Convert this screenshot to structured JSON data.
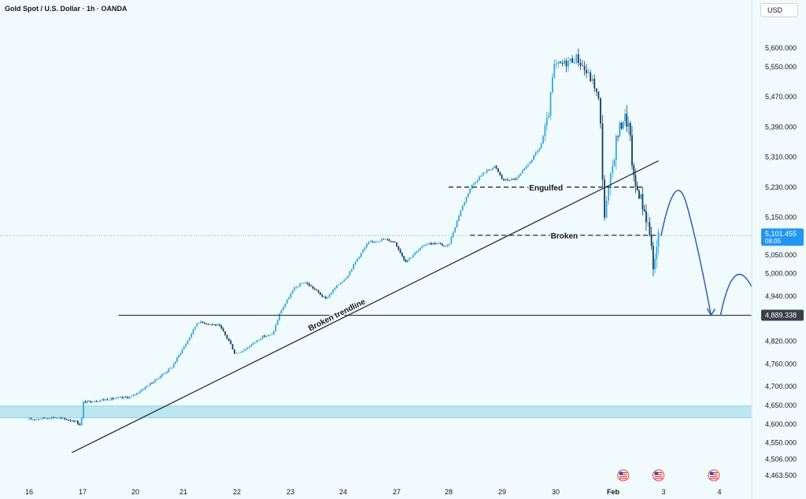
{
  "header": {
    "title": "Gold Spot / U.S. Dollar · 1h · OANDA",
    "currency": "USD"
  },
  "colors": {
    "background": "#f1fafc",
    "bull_candle": "#33a9d6",
    "bear_candle": "#123c69",
    "support_zone": "#b3e3ef",
    "annotation_arrow": "#2f5fb3",
    "last_price_badge": "#2196f3",
    "level_badge": "#3a3f4a"
  },
  "chart_data": {
    "type": "candlestick",
    "symbol": "Gold Spot / U.S. Dollar",
    "timeframe": "1h",
    "source": "OANDA",
    "ylim": [
      4440,
      5640
    ],
    "y_ticks": [
      "5,600.000",
      "5,550.000",
      "5,470.000",
      "5,390.000",
      "5,310.000",
      "5,230.000",
      "5,150.000",
      "5,050.000",
      "5,000.000",
      "4,940.000",
      "4,820.000",
      "4,760.000",
      "4,700.000",
      "4,650.000",
      "4,600.000",
      "4,550.000",
      "4,506.000",
      "4,463.500"
    ],
    "y_tick_values": [
      5600,
      5550,
      5470,
      5390,
      5310,
      5230,
      5150,
      5050,
      5000,
      4940,
      4820,
      4760,
      4700,
      4650,
      4600,
      4550,
      4506,
      4463.5
    ],
    "x_ticks": [
      {
        "label": "16",
        "day": 0
      },
      {
        "label": "17",
        "day": 1
      },
      {
        "label": "20",
        "day": 2
      },
      {
        "label": "21",
        "day": 3
      },
      {
        "label": "22",
        "day": 4
      },
      {
        "label": "23",
        "day": 5
      },
      {
        "label": "24",
        "day": 6
      },
      {
        "label": "27",
        "day": 7
      },
      {
        "label": "28",
        "day": 8
      },
      {
        "label": "29",
        "day": 9
      },
      {
        "label": "30",
        "day": 10
      },
      {
        "label": "Feb",
        "day": 11
      },
      {
        "label": "3",
        "day": 12
      },
      {
        "label": "4",
        "day": 13
      }
    ],
    "price_path": [
      [
        0.0,
        4612
      ],
      [
        0.5,
        4618
      ],
      [
        0.9,
        4608
      ],
      [
        1.0,
        4596
      ],
      [
        1.05,
        4658
      ],
      [
        1.5,
        4666
      ],
      [
        1.95,
        4672
      ],
      [
        2.4,
        4712
      ],
      [
        2.8,
        4752
      ],
      [
        3.1,
        4818
      ],
      [
        3.3,
        4872
      ],
      [
        3.7,
        4862
      ],
      [
        3.9,
        4818
      ],
      [
        4.0,
        4786
      ],
      [
        4.2,
        4800
      ],
      [
        4.5,
        4832
      ],
      [
        4.7,
        4838
      ],
      [
        4.85,
        4900
      ],
      [
        5.1,
        4960
      ],
      [
        5.3,
        4978
      ],
      [
        5.5,
        4958
      ],
      [
        5.7,
        4932
      ],
      [
        5.9,
        4965
      ],
      [
        6.1,
        4992
      ],
      [
        6.3,
        5040
      ],
      [
        6.5,
        5082
      ],
      [
        6.8,
        5092
      ],
      [
        7.0,
        5084
      ],
      [
        7.2,
        5032
      ],
      [
        7.4,
        5056
      ],
      [
        7.6,
        5080
      ],
      [
        7.85,
        5080
      ],
      [
        8.0,
        5070
      ],
      [
        8.05,
        5082
      ],
      [
        8.25,
        5165
      ],
      [
        8.45,
        5232
      ],
      [
        8.7,
        5270
      ],
      [
        8.9,
        5285
      ],
      [
        9.05,
        5248
      ],
      [
        9.3,
        5252
      ],
      [
        9.5,
        5286
      ],
      [
        9.75,
        5338
      ],
      [
        9.9,
        5420
      ],
      [
        10.0,
        5550
      ],
      [
        10.2,
        5560
      ],
      [
        10.4,
        5575
      ],
      [
        10.55,
        5540
      ],
      [
        10.7,
        5505
      ],
      [
        10.8,
        5450
      ],
      [
        10.88,
        5150
      ],
      [
        10.95,
        5210
      ],
      [
        11.1,
        5360
      ],
      [
        11.25,
        5420
      ],
      [
        11.35,
        5390
      ],
      [
        11.45,
        5240
      ],
      [
        11.55,
        5215
      ],
      [
        11.65,
        5170
      ],
      [
        11.75,
        5120
      ],
      [
        11.85,
        5005
      ],
      [
        11.93,
        5102
      ]
    ],
    "last_price": {
      "value": 5101.455,
      "label": "5,101.455",
      "countdown": "08:05"
    },
    "horizontal_levels": [
      {
        "value": 4889.338,
        "label": "4,889.338",
        "style": "solid"
      },
      {
        "value": 5230,
        "style": "dashed",
        "text": "Engulfed",
        "from_day": 8.0,
        "to_day": 11.6
      },
      {
        "value": 5102,
        "style": "dashed",
        "text": "Broken",
        "from_day": 8.4,
        "to_day": 11.9
      }
    ],
    "trendline": {
      "from": [
        0.8,
        4524
      ],
      "to": [
        11.9,
        5300
      ],
      "text": "Broken trendline"
    },
    "support_zone": {
      "from": 4617,
      "to": 4648
    },
    "projection_path": [
      [
        11.95,
        5100
      ],
      [
        12.3,
        5205
      ],
      [
        12.85,
        4889
      ],
      [
        13.35,
        4965
      ],
      [
        13.9,
        4652
      ]
    ],
    "event_markers": [
      {
        "day": 11.2,
        "icon": "us-flag-icon"
      },
      {
        "day": 11.9,
        "icon": "us-flag-icon"
      },
      {
        "day": 12.9,
        "icon": "us-flag-icon"
      }
    ]
  }
}
